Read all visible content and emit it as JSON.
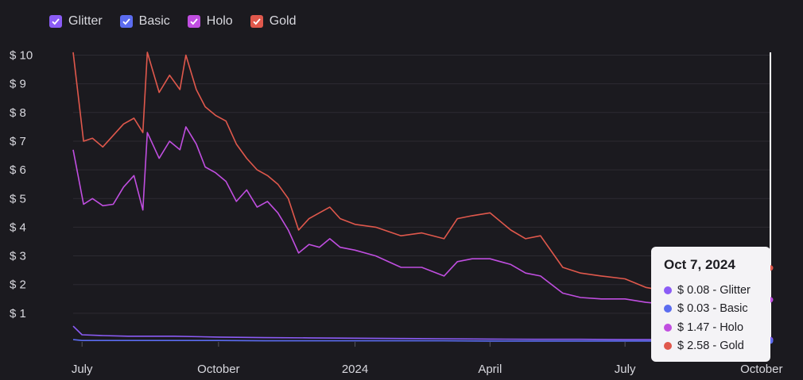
{
  "legend": [
    {
      "label": "Glitter",
      "color": "#8b5cf6",
      "checked": true
    },
    {
      "label": "Basic",
      "color": "#5b6cf0",
      "checked": true
    },
    {
      "label": "Holo",
      "color": "#c04ee0",
      "checked": true
    },
    {
      "label": "Gold",
      "color": "#e0584c",
      "checked": true
    }
  ],
  "tooltip": {
    "date": "Oct 7, 2024",
    "rows": [
      {
        "text": "$ 0.08 - Glitter",
        "color": "#8b5cf6"
      },
      {
        "text": "$ 0.03 - Basic",
        "color": "#5b6cf0"
      },
      {
        "text": "$ 1.47 - Holo",
        "color": "#c04ee0"
      },
      {
        "text": "$ 2.58 - Gold",
        "color": "#e0584c"
      }
    ]
  },
  "chart_data": {
    "type": "line",
    "xlabel": "",
    "ylabel": "",
    "ylim": [
      0,
      10
    ],
    "y_ticks": [
      "$ 1",
      "$ 2",
      "$ 3",
      "$ 4",
      "$ 5",
      "$ 6",
      "$ 7",
      "$ 8",
      "$ 9",
      "$ 10"
    ],
    "x_ticks": [
      "July",
      "October",
      "2024",
      "April",
      "July",
      "October"
    ],
    "x_range": [
      "2023-06-25",
      "2024-10-07"
    ],
    "grid": true,
    "legend_position": "top-left",
    "series": [
      {
        "name": "Glitter",
        "color": "#8b5cf6",
        "x": [
          "2023-06-25",
          "2023-07-01",
          "2023-07-15",
          "2023-08-01",
          "2023-09-01",
          "2023-10-01",
          "2023-11-01",
          "2023-12-01",
          "2024-01-01",
          "2024-02-01",
          "2024-03-01",
          "2024-04-01",
          "2024-05-01",
          "2024-06-01",
          "2024-07-01",
          "2024-08-01",
          "2024-09-01",
          "2024-10-07"
        ],
        "values": [
          0.55,
          0.25,
          0.22,
          0.2,
          0.2,
          0.17,
          0.15,
          0.14,
          0.13,
          0.12,
          0.11,
          0.1,
          0.09,
          0.09,
          0.08,
          0.08,
          0.08,
          0.08
        ]
      },
      {
        "name": "Basic",
        "color": "#5b6cf0",
        "x": [
          "2023-06-25",
          "2023-07-01",
          "2023-08-01",
          "2023-09-01",
          "2023-10-01",
          "2023-11-01",
          "2023-12-01",
          "2024-01-01",
          "2024-02-01",
          "2024-03-01",
          "2024-04-01",
          "2024-05-01",
          "2024-06-01",
          "2024-07-01",
          "2024-08-01",
          "2024-09-01",
          "2024-10-07"
        ],
        "values": [
          0.08,
          0.05,
          0.05,
          0.05,
          0.05,
          0.04,
          0.04,
          0.04,
          0.04,
          0.04,
          0.03,
          0.03,
          0.03,
          0.03,
          0.03,
          0.03,
          0.03
        ]
      },
      {
        "name": "Holo",
        "color": "#c04ee0",
        "x": [
          "2023-06-25",
          "2023-07-02",
          "2023-07-08",
          "2023-07-15",
          "2023-07-22",
          "2023-07-29",
          "2023-08-05",
          "2023-08-11",
          "2023-08-14",
          "2023-08-22",
          "2023-08-29",
          "2023-09-05",
          "2023-09-09",
          "2023-09-16",
          "2023-09-22",
          "2023-09-29",
          "2023-10-06",
          "2023-10-13",
          "2023-10-20",
          "2023-10-27",
          "2023-11-03",
          "2023-11-10",
          "2023-11-17",
          "2023-11-24",
          "2023-12-01",
          "2023-12-08",
          "2023-12-15",
          "2023-12-22",
          "2024-01-01",
          "2024-01-15",
          "2024-02-01",
          "2024-02-15",
          "2024-03-01",
          "2024-03-10",
          "2024-03-20",
          "2024-04-01",
          "2024-04-15",
          "2024-04-25",
          "2024-05-05",
          "2024-05-20",
          "2024-06-01",
          "2024-06-15",
          "2024-07-01",
          "2024-07-15",
          "2024-08-01",
          "2024-08-15",
          "2024-09-01",
          "2024-09-15",
          "2024-10-07"
        ],
        "values": [
          6.7,
          4.8,
          5.0,
          4.75,
          4.8,
          5.4,
          5.8,
          4.6,
          7.3,
          6.4,
          7.0,
          6.7,
          7.5,
          6.9,
          6.1,
          5.9,
          5.6,
          4.9,
          5.3,
          4.7,
          4.9,
          4.5,
          3.9,
          3.1,
          3.4,
          3.3,
          3.6,
          3.3,
          3.2,
          3.0,
          2.6,
          2.6,
          2.3,
          2.8,
          2.9,
          2.9,
          2.7,
          2.4,
          2.3,
          1.7,
          1.55,
          1.5,
          1.5,
          1.38,
          1.3,
          1.3,
          1.5,
          1.5,
          1.47
        ]
      },
      {
        "name": "Gold",
        "color": "#e0584c",
        "x": [
          "2023-06-25",
          "2023-07-02",
          "2023-07-08",
          "2023-07-15",
          "2023-07-22",
          "2023-07-29",
          "2023-08-05",
          "2023-08-11",
          "2023-08-14",
          "2023-08-22",
          "2023-08-29",
          "2023-09-05",
          "2023-09-09",
          "2023-09-16",
          "2023-09-22",
          "2023-09-29",
          "2023-10-06",
          "2023-10-13",
          "2023-10-20",
          "2023-10-27",
          "2023-11-03",
          "2023-11-10",
          "2023-11-17",
          "2023-11-24",
          "2023-12-01",
          "2023-12-08",
          "2023-12-15",
          "2023-12-22",
          "2024-01-01",
          "2024-01-15",
          "2024-02-01",
          "2024-02-15",
          "2024-03-01",
          "2024-03-10",
          "2024-03-20",
          "2024-04-01",
          "2024-04-15",
          "2024-04-25",
          "2024-05-05",
          "2024-05-20",
          "2024-06-01",
          "2024-06-15",
          "2024-07-01",
          "2024-07-15",
          "2024-08-01",
          "2024-08-15",
          "2024-09-01",
          "2024-09-15",
          "2024-10-07"
        ],
        "values": [
          10.1,
          7.0,
          7.1,
          6.8,
          7.2,
          7.6,
          7.8,
          7.3,
          10.1,
          8.7,
          9.3,
          8.8,
          10.0,
          8.8,
          8.2,
          7.9,
          7.7,
          6.9,
          6.4,
          6.0,
          5.8,
          5.5,
          5.0,
          3.9,
          4.3,
          4.5,
          4.7,
          4.3,
          4.1,
          4.0,
          3.7,
          3.8,
          3.6,
          4.3,
          4.4,
          4.5,
          3.9,
          3.6,
          3.7,
          2.6,
          2.4,
          2.3,
          2.2,
          1.9,
          1.75,
          1.6,
          1.9,
          2.1,
          2.58
        ]
      }
    ]
  }
}
